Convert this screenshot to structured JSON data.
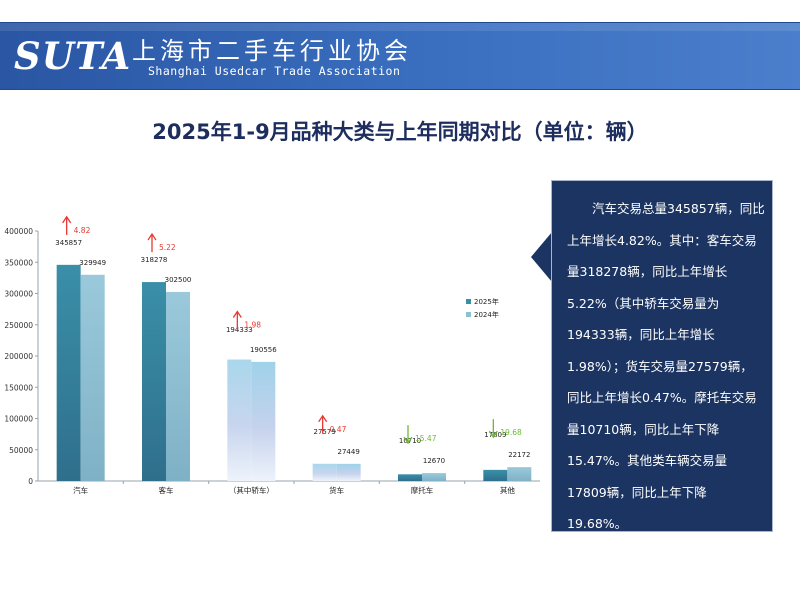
{
  "header": {
    "logo_latin": "SUTA",
    "logo_cn": "上海市二手车行业协会",
    "logo_en": "Shanghai Usedcar Trade Association"
  },
  "colors": {
    "banner": "#2f5fb0",
    "title": "#1c2d5e",
    "series_2025": "#3a8fa8",
    "series_2024": "#8fc0d2",
    "up_arrow": "#e8382f",
    "down_arrow": "#6fb936",
    "callout_bg": "#1c3461"
  },
  "chart_data": {
    "type": "bar",
    "title": "2025年1-9月品种大类与上年同期对比（单位：辆）",
    "categories": [
      "汽车",
      "客车",
      "（其中轿车）",
      "货车",
      "摩托车",
      "其他"
    ],
    "series": [
      {
        "name": "2025年",
        "values": [
          345857,
          318278,
          194333,
          27579,
          10710,
          17809
        ]
      },
      {
        "name": "2024年",
        "values": [
          329949,
          302500,
          190556,
          27449,
          12670,
          22172
        ]
      }
    ],
    "value_labels": [
      [
        "345857",
        "318278",
        "194333",
        "27579",
        "10710",
        "17809"
      ],
      [
        "329949",
        "302500",
        "190556",
        "27449",
        "12670",
        "22172"
      ]
    ],
    "changes": [
      {
        "direction": "up",
        "label": "4.82"
      },
      {
        "direction": "up",
        "label": "5.22"
      },
      {
        "direction": "up",
        "label": "1.98"
      },
      {
        "direction": "up",
        "label": "0.47"
      },
      {
        "direction": "down",
        "label": "15.47"
      },
      {
        "direction": "down",
        "label": "19.68"
      }
    ],
    "yticks": [
      "0",
      "50000",
      "100000",
      "150000",
      "200000",
      "250000",
      "300000",
      "350000",
      "400000"
    ],
    "ylim": [
      0,
      400000
    ],
    "legend_position": "right",
    "grid": false
  },
  "callout": {
    "text": "汽车交易总量345857辆，同比上年增长4.82%。其中：客车交易量318278辆，同比上年增长5.22%（其中轿车交易量为194333辆，同比上年增长1.98%）；货车交易量27579辆，同比上年增长0.47%。摩托车交易量10710辆，同比上年下降15.47%。其他类车辆交易量17809辆，同比上年下降19.68%。"
  }
}
